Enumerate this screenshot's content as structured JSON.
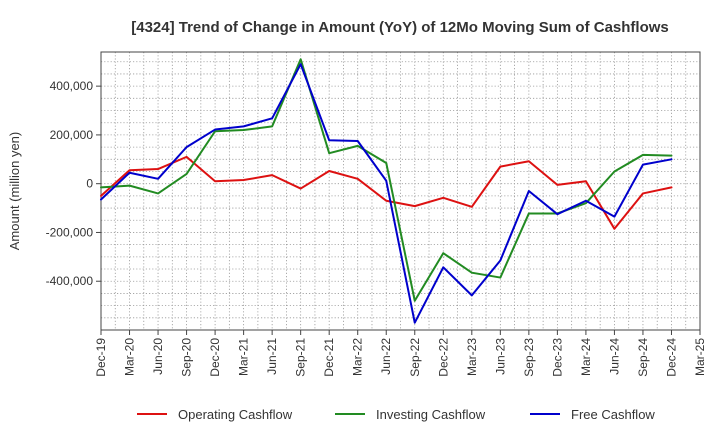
{
  "chart_data": {
    "type": "line",
    "title": "[4324]  Trend of Change in Amount (YoY) of 12Mo Moving Sum of Cashflows",
    "xlabel": "",
    "ylabel": "Amount (million yen)",
    "ylim": [
      -600000,
      540000
    ],
    "y_ticks": [
      {
        "value": 400000,
        "label": "400,000"
      },
      {
        "value": 200000,
        "label": "200,000"
      },
      {
        "value": 0,
        "label": "0"
      },
      {
        "value": -200000,
        "label": "-200,000"
      },
      {
        "value": -400000,
        "label": "-400,000"
      }
    ],
    "categories": [
      "Dec-19",
      "Mar-20",
      "Jun-20",
      "Sep-20",
      "Dec-20",
      "Mar-21",
      "Jun-21",
      "Sep-21",
      "Dec-21",
      "Mar-22",
      "Jun-22",
      "Sep-22",
      "Dec-22",
      "Mar-23",
      "Jun-23",
      "Sep-23",
      "Dec-23",
      "Mar-24",
      "Jun-24",
      "Sep-24",
      "Dec-24",
      "Mar-25"
    ],
    "legend_position": "bottom",
    "grid": true,
    "series": [
      {
        "name": "Operating Cashflow",
        "color": "#dd1111",
        "values": [
          -50000,
          55000,
          60000,
          110000,
          10000,
          15000,
          35000,
          -20000,
          52000,
          20000,
          -70000,
          -92000,
          -58000,
          -95000,
          70000,
          92000,
          -5000,
          10000,
          -185000,
          -40000,
          -15000,
          null
        ]
      },
      {
        "name": "Investing Cashflow",
        "color": "#228b22",
        "values": [
          -15000,
          -8000,
          -40000,
          40000,
          215000,
          220000,
          235000,
          510000,
          125000,
          155000,
          85000,
          -480000,
          -285000,
          -365000,
          -385000,
          -122000,
          -122000,
          -80000,
          50000,
          118000,
          115000,
          null
        ]
      },
      {
        "name": "Free Cashflow",
        "color": "#0000cc",
        "values": [
          -65000,
          45000,
          20000,
          150000,
          222000,
          235000,
          268000,
          490000,
          178000,
          175000,
          12000,
          -570000,
          -343000,
          -458000,
          -315000,
          -30000,
          -125000,
          -70000,
          -135000,
          78000,
          100000,
          null
        ]
      }
    ]
  }
}
